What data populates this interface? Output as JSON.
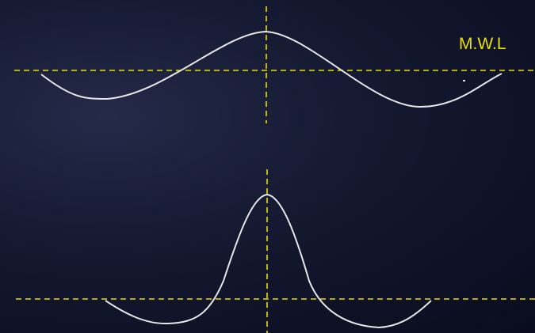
{
  "diagram": {
    "mean_water_level_label": "M.W.L",
    "colors": {
      "reference_line": "#e8e000",
      "wave_profile": "#e6e6e6",
      "label": "#e8e000"
    },
    "panels": [
      {
        "name": "sinusoidal-wave-profile",
        "crest_count": 1,
        "trough_count": 2
      },
      {
        "name": "solitary-peaked-wave-profile",
        "crest_count": 1,
        "trough_count": 2
      }
    ]
  }
}
